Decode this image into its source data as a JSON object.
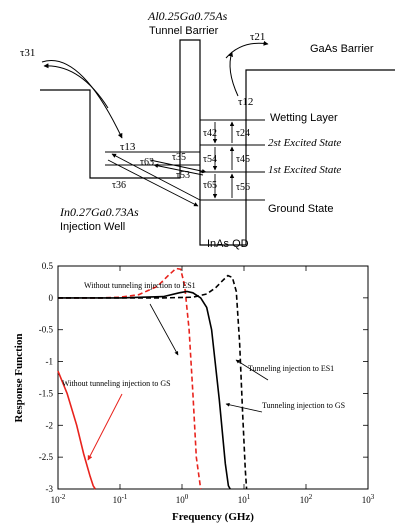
{
  "diagram": {
    "barrier_label_line1": "Al0.25Ga0.75As",
    "barrier_label_line2": "Tunnel Barrier",
    "gaas_label": "GaAs Barrier",
    "wetting_label": "Wetting Layer",
    "es2_label": "2st Excited State",
    "es1_label": "1st Excited State",
    "gs_label": "Ground State",
    "well_label_line1": "In0.27Ga0.73As",
    "well_label_line2": "Injection Well",
    "qd_label": "InAs QD",
    "tau": {
      "t31": "τ31",
      "t21": "τ21",
      "t12": "τ12",
      "t13": "τ13",
      "t42": "τ42",
      "t24": "τ24",
      "t54": "τ54",
      "t45": "τ45",
      "t65": "τ65",
      "t56": "τ56",
      "t63": "τ63",
      "t35": "τ35",
      "t53": "τ53",
      "t36": "τ36"
    }
  },
  "chart_data": {
    "type": "line",
    "xlabel": "Frequency (GHz)",
    "ylabel": "Response Function",
    "xscale": "log",
    "xlim": [
      0.01,
      1000
    ],
    "ylim": [
      -3,
      0.5
    ],
    "xticks": [
      "10-2",
      "10-1",
      "100",
      "101",
      "102",
      "103"
    ],
    "yticks": [
      "0.5",
      "0",
      "-0.5",
      "-1",
      "-1.5",
      "-2",
      "-2.5",
      "-3"
    ],
    "grid": false,
    "annotations": [
      "Without tunneling injection to ES1",
      "Without tunneling injection to GS",
      "Tunneling injection to ES1",
      "Tunneling injection to GS"
    ],
    "series": [
      {
        "name": "Without tunneling injection to GS",
        "color": "#e8231d",
        "dash": "solid",
        "x": [
          0.01,
          0.014,
          0.02,
          0.026,
          0.033,
          0.037,
          0.04
        ],
        "y": [
          -1.15,
          -1.5,
          -2.0,
          -2.45,
          -2.8,
          -2.95,
          -3.0
        ]
      },
      {
        "name": "Without tunneling injection to ES1",
        "color": "#e8231d",
        "dash": "dashed",
        "x": [
          0.01,
          0.05,
          0.1,
          0.2,
          0.4,
          0.6,
          0.8,
          0.95,
          1.1,
          1.3,
          1.5,
          1.7,
          2.0
        ],
        "y": [
          0.0,
          0.0,
          0.01,
          0.05,
          0.18,
          0.35,
          0.46,
          0.45,
          0.2,
          -0.5,
          -1.5,
          -2.5,
          -3.0
        ]
      },
      {
        "name": "Tunneling injection to GS",
        "color": "#000000",
        "dash": "solid",
        "x": [
          0.01,
          0.1,
          0.5,
          0.9,
          1.2,
          1.5,
          2.0,
          2.5,
          3.0,
          4.0,
          5.0,
          5.6,
          6.0
        ],
        "y": [
          0.0,
          0.0,
          0.02,
          0.08,
          0.1,
          0.08,
          0.0,
          -0.15,
          -0.5,
          -1.6,
          -2.6,
          -2.95,
          -3.0
        ]
      },
      {
        "name": "Tunneling injection to ES1",
        "color": "#000000",
        "dash": "dashed",
        "x": [
          0.01,
          0.5,
          1.5,
          2.5,
          3.5,
          4.5,
          5.5,
          6.5,
          7.5,
          8.5,
          9.5,
          10.5,
          11.0
        ],
        "y": [
          0.0,
          0.0,
          0.01,
          0.06,
          0.16,
          0.27,
          0.35,
          0.32,
          0.1,
          -0.7,
          -1.8,
          -2.7,
          -3.0
        ]
      }
    ]
  }
}
